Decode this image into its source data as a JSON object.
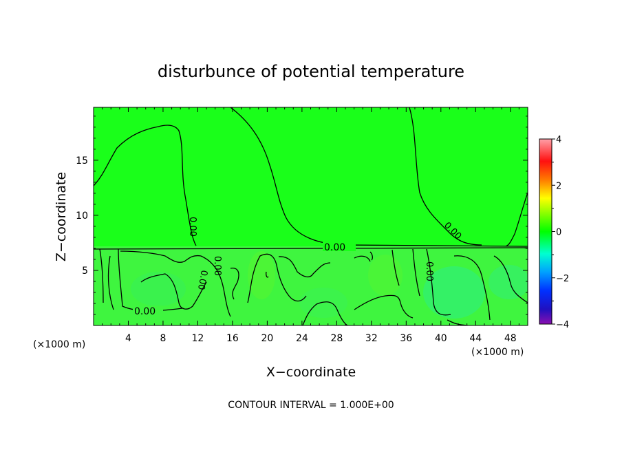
{
  "chart_data": {
    "type": "heatmap",
    "title": "disturbunce of potential temperature",
    "xlabel": "X−coordinate",
    "ylabel": "Z−coordinate",
    "x_unit_left": "(×1000 m)",
    "x_unit_right": "(×1000 m)",
    "xlim": [
      0,
      50
    ],
    "ylim": [
      0,
      19.8
    ],
    "x_ticks": [
      "4",
      "8",
      "12",
      "16",
      "20",
      "24",
      "28",
      "32",
      "36",
      "40",
      "44",
      "48"
    ],
    "y_ticks": [
      "5",
      "10",
      "15"
    ],
    "colorbar": {
      "range": [
        -4,
        4
      ],
      "ticks": [
        "4",
        "2",
        "0",
        "−2",
        "−4"
      ],
      "colors": [
        "#ff8c9a",
        "#ff1a1a",
        "#ff8c00",
        "#ffff00",
        "#1aff1a",
        "#00ffd0",
        "#0078ff",
        "#1a1aff",
        "#8a1ab5"
      ]
    },
    "contour_labels": [
      "0.00",
      "0.00",
      "0.00",
      "0.00",
      "0.00",
      "0.00",
      "0.00"
    ],
    "field_colors": {
      "upper": "#1aff1a",
      "lower": "#3ff53f",
      "cool": "#30f078"
    }
  },
  "footer": {
    "contour_interval": "CONTOUR INTERVAL = 1.000E+00"
  }
}
